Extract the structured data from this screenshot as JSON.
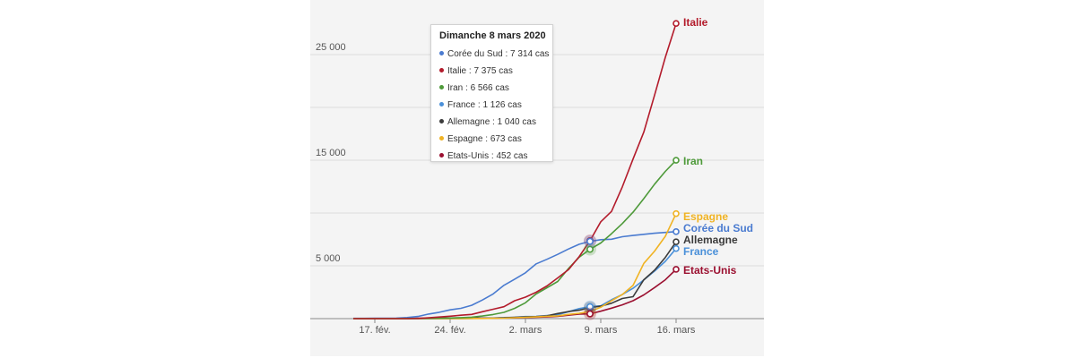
{
  "chart_data": {
    "type": "line",
    "title": "",
    "xlabel": "",
    "ylabel": "",
    "x": [
      "2020-02-15",
      "2020-02-16",
      "2020-02-17",
      "2020-02-18",
      "2020-02-19",
      "2020-02-20",
      "2020-02-21",
      "2020-02-22",
      "2020-02-23",
      "2020-02-24",
      "2020-02-25",
      "2020-02-26",
      "2020-02-27",
      "2020-02-28",
      "2020-02-29",
      "2020-03-01",
      "2020-03-02",
      "2020-03-03",
      "2020-03-04",
      "2020-03-05",
      "2020-03-06",
      "2020-03-07",
      "2020-03-08",
      "2020-03-09",
      "2020-03-10",
      "2020-03-11",
      "2020-03-12",
      "2020-03-13",
      "2020-03-14",
      "2020-03-15",
      "2020-03-16"
    ],
    "x_ticks": [
      {
        "date": "2020-02-17",
        "label": "17. fév."
      },
      {
        "date": "2020-02-24",
        "label": "24. fév."
      },
      {
        "date": "2020-03-02",
        "label": "2. mars"
      },
      {
        "date": "2020-03-09",
        "label": "9. mars"
      },
      {
        "date": "2020-03-16",
        "label": "16. mars"
      }
    ],
    "y_ticks": [
      {
        "value": 5000,
        "label": "5 000"
      },
      {
        "value": 15000,
        "label": "15 000"
      },
      {
        "value": 25000,
        "label": "25 000"
      }
    ],
    "y_scale_note": "",
    "ylim": [
      0,
      28000
    ],
    "grid": true,
    "highlight_date": "2020-03-08",
    "series": [
      {
        "name": "Italie",
        "color": "#b31b2b",
        "values": [
          3,
          3,
          3,
          3,
          3,
          3,
          20,
          79,
          150,
          229,
          322,
          400,
          650,
          888,
          1128,
          1694,
          2036,
          2502,
          3089,
          3858,
          4636,
          5883,
          7375,
          9172,
          10149,
          12462,
          15113,
          17660,
          21157,
          24747,
          27980
        ]
      },
      {
        "name": "Iran",
        "color": "#4e9a3a",
        "values": [
          0,
          0,
          0,
          0,
          2,
          5,
          18,
          28,
          43,
          61,
          95,
          139,
          245,
          388,
          593,
          978,
          1501,
          2336,
          2922,
          3513,
          4747,
          5823,
          6566,
          7161,
          8042,
          9000,
          10075,
          11364,
          12729,
          13938,
          14991
        ]
      },
      {
        "name": "Espagne",
        "color": "#f0b323",
        "values": [
          2,
          2,
          2,
          2,
          2,
          2,
          2,
          2,
          2,
          2,
          6,
          13,
          15,
          32,
          45,
          84,
          120,
          165,
          222,
          259,
          400,
          500,
          673,
          1073,
          1695,
          2277,
          3146,
          5232,
          6391,
          7798,
          9942
        ]
      },
      {
        "name": "Corée du Sud",
        "color": "#4a7bd0",
        "values": [
          28,
          29,
          30,
          31,
          51,
          104,
          204,
          433,
          602,
          833,
          977,
          1261,
          1766,
          2337,
          3150,
          3736,
          4335,
          5186,
          5621,
          6088,
          6593,
          7041,
          7314,
          7478,
          7513,
          7755,
          7869,
          7979,
          8086,
          8162,
          8236
        ]
      },
      {
        "name": "Allemagne",
        "color": "#3b3b3b",
        "values": [
          16,
          16,
          16,
          16,
          16,
          16,
          16,
          16,
          16,
          16,
          17,
          27,
          46,
          48,
          79,
          130,
          159,
          196,
          262,
          482,
          670,
          799,
          1040,
          1176,
          1457,
          1908,
          2078,
          3675,
          4585,
          5795,
          7272
        ]
      },
      {
        "name": "France",
        "color": "#4a90d9",
        "values": [
          12,
          12,
          12,
          12,
          12,
          12,
          12,
          12,
          12,
          12,
          14,
          18,
          38,
          57,
          100,
          130,
          191,
          204,
          285,
          377,
          653,
          949,
          1126,
          1209,
          1784,
          2281,
          2876,
          3661,
          4499,
          5423,
          6633
        ]
      },
      {
        "name": "Etats-Unis",
        "color": "#9b1030",
        "values": [
          15,
          15,
          15,
          15,
          15,
          15,
          35,
          35,
          35,
          53,
          57,
          60,
          60,
          62,
          68,
          75,
          100,
          124,
          158,
          221,
          319,
          435,
          452,
          704,
          994,
          1301,
          1697,
          2247,
          2943,
          3680,
          4663
        ]
      }
    ],
    "end_labels": [
      "Italie",
      "Iran",
      "Espagne",
      "Corée du Sud",
      "Allemagne",
      "France",
      "Etats-Unis"
    ]
  },
  "tooltip": {
    "title": "Dimanche 8 mars 2020",
    "rows": [
      {
        "text": "Corée du Sud : 7 314 cas",
        "color": "#4a7bd0"
      },
      {
        "text": "Italie : 7 375 cas",
        "color": "#b31b2b"
      },
      {
        "text": "Iran : 6 566 cas",
        "color": "#4e9a3a"
      },
      {
        "text": "France : 1 126 cas",
        "color": "#4a90d9"
      },
      {
        "text": "Allemagne : 1 040 cas",
        "color": "#3b3b3b"
      },
      {
        "text": "Espagne : 673 cas",
        "color": "#f0b323"
      },
      {
        "text": "Etats-Unis : 452 cas",
        "color": "#9b1030"
      }
    ]
  }
}
